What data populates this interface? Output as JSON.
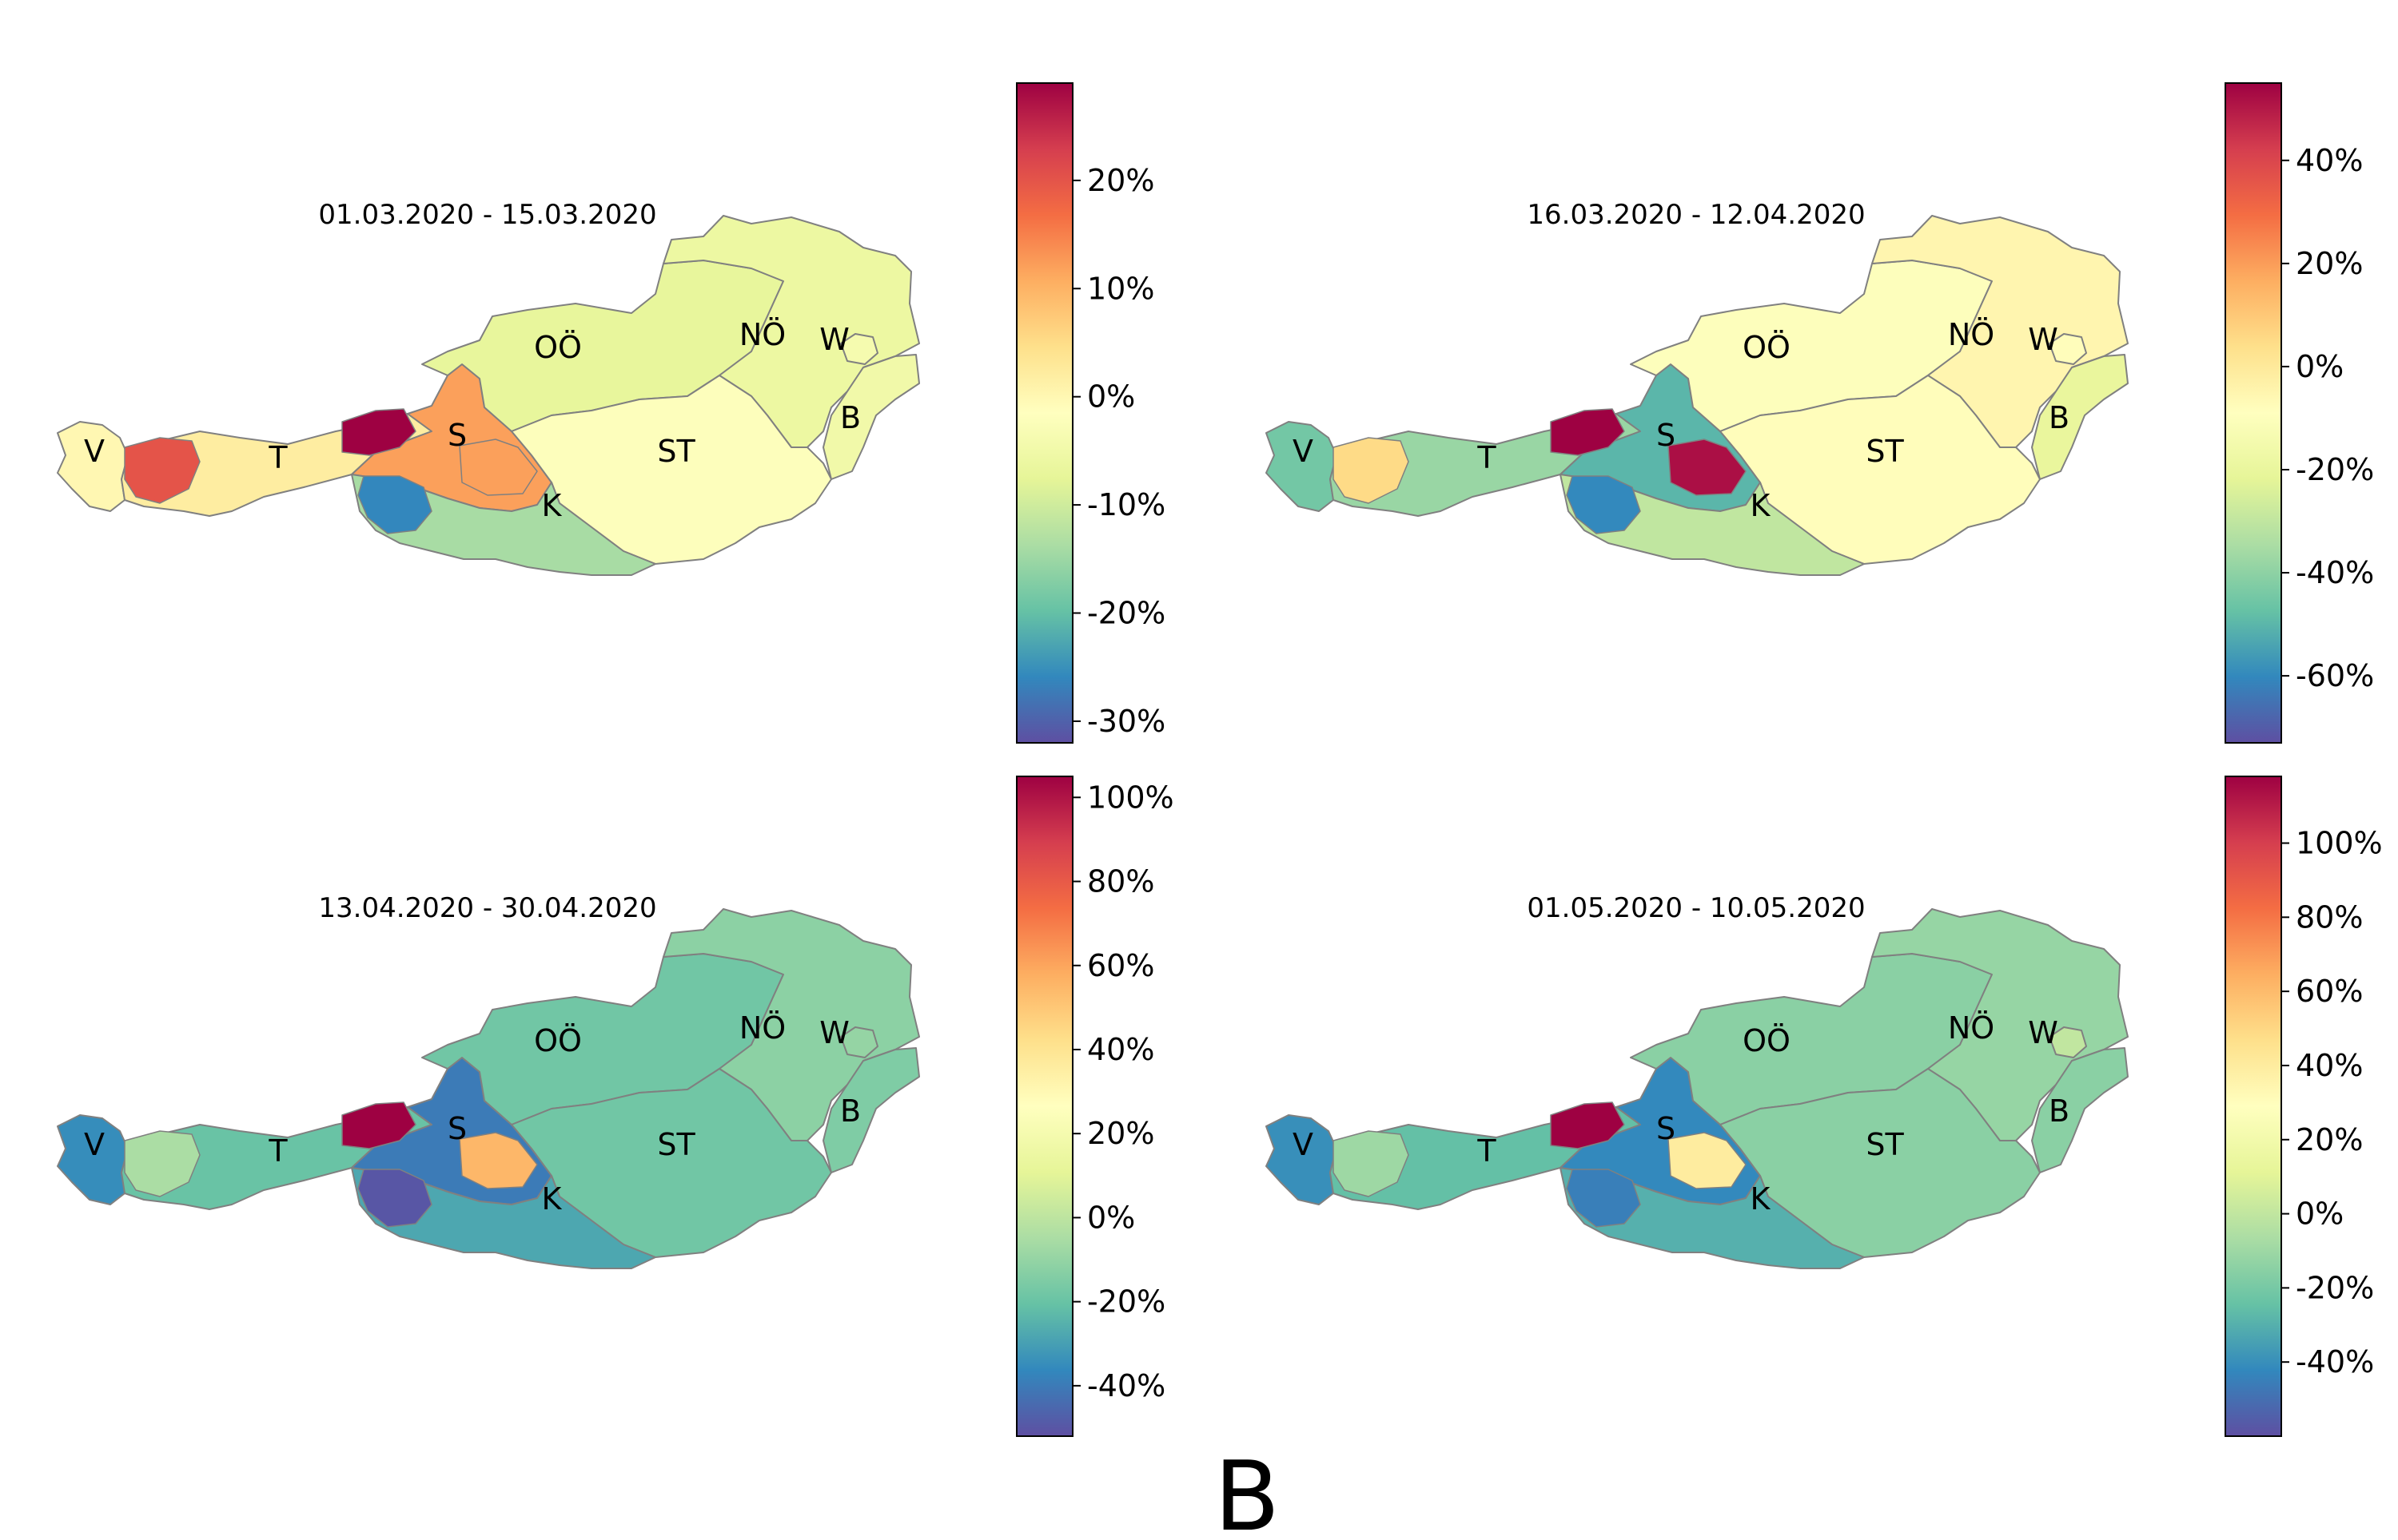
{
  "figure_label": "B",
  "colors": {
    "colormap": [
      "#5e4fa2",
      "#3288bd",
      "#66c2a5",
      "#abdda4",
      "#e6f598",
      "#ffffbf",
      "#fee08b",
      "#fdae61",
      "#f46d43",
      "#d53e4f",
      "#9e0142"
    ],
    "border": "#808080"
  },
  "region_codes": [
    "V",
    "T",
    "S",
    "OÖ",
    "NÖ",
    "W",
    "B",
    "ST",
    "K"
  ],
  "panels": [
    {
      "title": "01.03.2020 - 15.03.2020",
      "colorbar": {
        "range": [
          -32,
          29
        ],
        "ticks": [
          {
            "value": 20,
            "label": "20%"
          },
          {
            "value": 10,
            "label": "10%"
          },
          {
            "value": 0,
            "label": "0%"
          },
          {
            "value": -10,
            "label": "-10%"
          },
          {
            "value": -20,
            "label": "-20%"
          },
          {
            "value": -30,
            "label": "-30%"
          }
        ]
      },
      "regions": [
        {
          "code": "V",
          "label": "V",
          "value": 0
        },
        {
          "code": "T",
          "label": "T",
          "value": 2
        },
        {
          "code": "S",
          "label": "S",
          "value": 12
        },
        {
          "code": "OÖ",
          "label": "OÖ",
          "value": -7
        },
        {
          "code": "NÖ",
          "label": "NÖ",
          "value": -6
        },
        {
          "code": "W",
          "label": "W",
          "value": -4
        },
        {
          "code": "B",
          "label": "B",
          "value": -5
        },
        {
          "code": "ST",
          "label": "ST",
          "value": -2
        },
        {
          "code": "K",
          "label": "K",
          "value": -14
        }
      ],
      "hotspots": [
        {
          "name": "tirol-west",
          "value": 20
        },
        {
          "name": "tirol-kitzbuehel",
          "value": 29
        },
        {
          "name": "salzburg-south",
          "value": 12
        },
        {
          "name": "osttirol",
          "value": -26
        }
      ]
    },
    {
      "title": "16.03.2020 - 12.04.2020",
      "colorbar": {
        "range": [
          -73,
          55
        ],
        "ticks": [
          {
            "value": 40,
            "label": "40%"
          },
          {
            "value": 20,
            "label": "20%"
          },
          {
            "value": 0,
            "label": "0%"
          },
          {
            "value": -20,
            "label": "-20%"
          },
          {
            "value": -40,
            "label": "-40%"
          },
          {
            "value": -60,
            "label": "-60%"
          }
        ]
      },
      "regions": [
        {
          "code": "V",
          "label": "V",
          "value": -45
        },
        {
          "code": "T",
          "label": "T",
          "value": -38
        },
        {
          "code": "S",
          "label": "S",
          "value": -50
        },
        {
          "code": "OÖ",
          "label": "OÖ",
          "value": -10
        },
        {
          "code": "NÖ",
          "label": "NÖ",
          "value": -5
        },
        {
          "code": "W",
          "label": "W",
          "value": -8
        },
        {
          "code": "B",
          "label": "B",
          "value": -20
        },
        {
          "code": "ST",
          "label": "ST",
          "value": -8
        },
        {
          "code": "K",
          "label": "K",
          "value": -30
        }
      ],
      "hotspots": [
        {
          "name": "tirol-west",
          "value": 5
        },
        {
          "name": "tirol-kitzbuehel",
          "value": 55
        },
        {
          "name": "salzburg-south",
          "value": 52
        },
        {
          "name": "osttirol",
          "value": -60
        }
      ]
    },
    {
      "title": "13.04.2020 - 30.04.2020",
      "colorbar": {
        "range": [
          -52,
          105
        ],
        "ticks": [
          {
            "value": 100,
            "label": "100%"
          },
          {
            "value": 80,
            "label": "80%"
          },
          {
            "value": 60,
            "label": "60%"
          },
          {
            "value": 40,
            "label": "40%"
          },
          {
            "value": 20,
            "label": "20%"
          },
          {
            "value": 0,
            "label": "0%"
          },
          {
            "value": -20,
            "label": "-20%"
          },
          {
            "value": -40,
            "label": "-40%"
          }
        ]
      },
      "regions": [
        {
          "code": "V",
          "label": "V",
          "value": -35
        },
        {
          "code": "T",
          "label": "T",
          "value": -20
        },
        {
          "code": "S",
          "label": "S",
          "value": -40
        },
        {
          "code": "OÖ",
          "label": "OÖ",
          "value": -18
        },
        {
          "code": "NÖ",
          "label": "NÖ",
          "value": -12
        },
        {
          "code": "W",
          "label": "W",
          "value": -10
        },
        {
          "code": "B",
          "label": "B",
          "value": -15
        },
        {
          "code": "ST",
          "label": "ST",
          "value": -18
        },
        {
          "code": "K",
          "label": "K",
          "value": -28
        }
      ],
      "hotspots": [
        {
          "name": "tirol-west",
          "value": -5
        },
        {
          "name": "tirol-kitzbuehel",
          "value": 105
        },
        {
          "name": "salzburg-south",
          "value": 55
        },
        {
          "name": "osttirol",
          "value": -50
        }
      ]
    },
    {
      "title": "01.05.2020 - 10.05.2020",
      "colorbar": {
        "range": [
          -60,
          118
        ],
        "ticks": [
          {
            "value": 100,
            "label": "100%"
          },
          {
            "value": 80,
            "label": "80%"
          },
          {
            "value": 60,
            "label": "60%"
          },
          {
            "value": 40,
            "label": "40%"
          },
          {
            "value": 20,
            "label": "20%"
          },
          {
            "value": 0,
            "label": "0%"
          },
          {
            "value": -20,
            "label": "-20%"
          },
          {
            "value": -40,
            "label": "-40%"
          }
        ]
      },
      "regions": [
        {
          "code": "V",
          "label": "V",
          "value": -40
        },
        {
          "code": "T",
          "label": "T",
          "value": -25
        },
        {
          "code": "S",
          "label": "S",
          "value": -42
        },
        {
          "code": "OÖ",
          "label": "OÖ",
          "value": -15
        },
        {
          "code": "NÖ",
          "label": "NÖ",
          "value": -12
        },
        {
          "code": "W",
          "label": "W",
          "value": 0
        },
        {
          "code": "B",
          "label": "B",
          "value": -15
        },
        {
          "code": "ST",
          "label": "ST",
          "value": -15
        },
        {
          "code": "K",
          "label": "K",
          "value": -30
        }
      ],
      "hotspots": [
        {
          "name": "tirol-west",
          "value": -10
        },
        {
          "name": "tirol-kitzbuehel",
          "value": 118
        },
        {
          "name": "salzburg-south",
          "value": 40
        },
        {
          "name": "osttirol",
          "value": -45
        }
      ]
    }
  ]
}
